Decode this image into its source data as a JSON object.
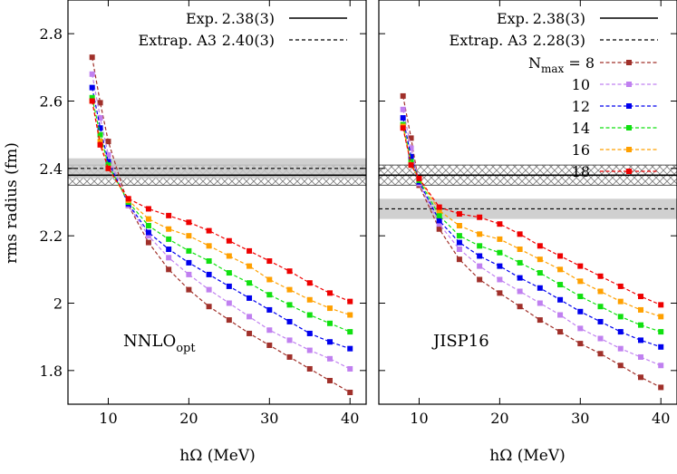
{
  "y_axis_label": "rms radius (fm)",
  "colors": {
    "Nmax=8": "#a0302a",
    "Nmax=10": "#c080f0",
    "Nmax=12": "#0000ee",
    "Nmax=14": "#10e010",
    "Nmax=16": "#ffa000",
    "Nmax=18": "#ee0000",
    "band": "#c8c8c8",
    "hatch": "#808080"
  },
  "chart_data": [
    {
      "type": "line",
      "panel_label": "NNLO",
      "panel_label_sub": "opt",
      "xlabel": "hΩ (MeV)",
      "ylabel": "rms radius (fm)",
      "xlim": [
        5,
        42
      ],
      "ylim": [
        1.7,
        2.9
      ],
      "xticks": [
        10,
        20,
        30,
        40
      ],
      "yticks": [
        1.8,
        2.0,
        2.2,
        2.4,
        2.6,
        2.8
      ],
      "ytick_labels": [
        "1.8",
        "2",
        "2.2",
        "2.4",
        "2.6",
        "2.8"
      ],
      "x": [
        8,
        9,
        10,
        12.5,
        15,
        17.5,
        20,
        22.5,
        25,
        27.5,
        30,
        32.5,
        35,
        37.5,
        40
      ],
      "series": [
        {
          "name": "8",
          "values": [
            2.73,
            2.595,
            2.48,
            2.29,
            2.18,
            2.1,
            2.04,
            1.99,
            1.95,
            1.91,
            1.875,
            1.84,
            1.805,
            1.77,
            1.735
          ]
        },
        {
          "name": "10",
          "values": [
            2.68,
            2.55,
            2.44,
            2.29,
            2.2,
            2.135,
            2.085,
            2.04,
            2.0,
            1.96,
            1.92,
            1.89,
            1.86,
            1.835,
            1.805
          ]
        },
        {
          "name": "12",
          "values": [
            2.64,
            2.52,
            2.42,
            2.295,
            2.21,
            2.16,
            2.12,
            2.085,
            2.05,
            2.015,
            1.98,
            1.945,
            1.91,
            1.885,
            1.865
          ]
        },
        {
          "name": "14",
          "values": [
            2.61,
            2.5,
            2.41,
            2.3,
            2.23,
            2.19,
            2.155,
            2.125,
            2.09,
            2.06,
            2.025,
            1.995,
            1.965,
            1.94,
            1.915
          ]
        },
        {
          "name": "16",
          "values": [
            2.6,
            2.48,
            2.4,
            2.305,
            2.25,
            2.22,
            2.2,
            2.17,
            2.14,
            2.11,
            2.07,
            2.04,
            2.01,
            1.985,
            1.965
          ]
        },
        {
          "name": "18",
          "values": [
            2.6,
            2.47,
            2.4,
            2.31,
            2.28,
            2.26,
            2.24,
            2.215,
            2.185,
            2.155,
            2.125,
            2.095,
            2.06,
            2.03,
            2.005
          ]
        }
      ],
      "reference_lines": [
        {
          "label": "Exp.",
          "value_text": "2.38(3)",
          "value": 2.38,
          "uncertainty": 0.03,
          "style": "solid",
          "band": "hatched"
        },
        {
          "label": "Extrap. A3",
          "value_text": "2.40(3)",
          "value": 2.4,
          "uncertainty": 0.03,
          "style": "dashed",
          "band": "solid-gray"
        }
      ]
    },
    {
      "type": "line",
      "panel_label": "JISP16",
      "xlabel": "hΩ (MeV)",
      "xlim": [
        5,
        42
      ],
      "ylim": [
        1.7,
        2.9
      ],
      "xticks": [
        10,
        20,
        30,
        40
      ],
      "x": [
        8,
        9,
        10,
        12.5,
        15,
        17.5,
        20,
        22.5,
        25,
        27.5,
        30,
        32.5,
        35,
        37.5,
        40
      ],
      "legend_title": "N",
      "legend_title_sub": "max",
      "legend_title_suffix": " = ",
      "series": [
        {
          "name": "8",
          "values": [
            2.615,
            2.49,
            2.35,
            2.22,
            2.13,
            2.07,
            2.03,
            1.99,
            1.95,
            1.915,
            1.88,
            1.85,
            1.815,
            1.78,
            1.75
          ]
        },
        {
          "name": "10",
          "values": [
            2.575,
            2.46,
            2.355,
            2.235,
            2.16,
            2.11,
            2.07,
            2.035,
            2.0,
            1.965,
            1.925,
            1.895,
            1.865,
            1.84,
            1.815
          ]
        },
        {
          "name": "12",
          "values": [
            2.55,
            2.435,
            2.36,
            2.245,
            2.18,
            2.14,
            2.11,
            2.075,
            2.045,
            2.01,
            1.975,
            1.945,
            1.915,
            1.89,
            1.87
          ]
        },
        {
          "name": "14",
          "values": [
            2.53,
            2.42,
            2.365,
            2.26,
            2.2,
            2.17,
            2.15,
            2.12,
            2.09,
            2.055,
            2.02,
            1.99,
            1.96,
            1.935,
            1.915
          ]
        },
        {
          "name": "16",
          "values": [
            2.525,
            2.41,
            2.37,
            2.275,
            2.23,
            2.205,
            2.19,
            2.16,
            2.13,
            2.1,
            2.065,
            2.035,
            2.005,
            1.98,
            1.96
          ]
        },
        {
          "name": "18",
          "values": [
            2.52,
            2.41,
            2.37,
            2.285,
            2.265,
            2.255,
            2.235,
            2.205,
            2.17,
            2.14,
            2.11,
            2.08,
            2.05,
            2.02,
            1.995
          ]
        }
      ],
      "reference_lines": [
        {
          "label": "Exp.",
          "value_text": "2.38(3)",
          "value": 2.38,
          "uncertainty": 0.03,
          "style": "solid",
          "band": "hatched"
        },
        {
          "label": "Extrap. A3",
          "value_text": "2.28(3)",
          "value": 2.28,
          "uncertainty": 0.03,
          "style": "dashed",
          "band": "solid-gray"
        }
      ]
    }
  ]
}
